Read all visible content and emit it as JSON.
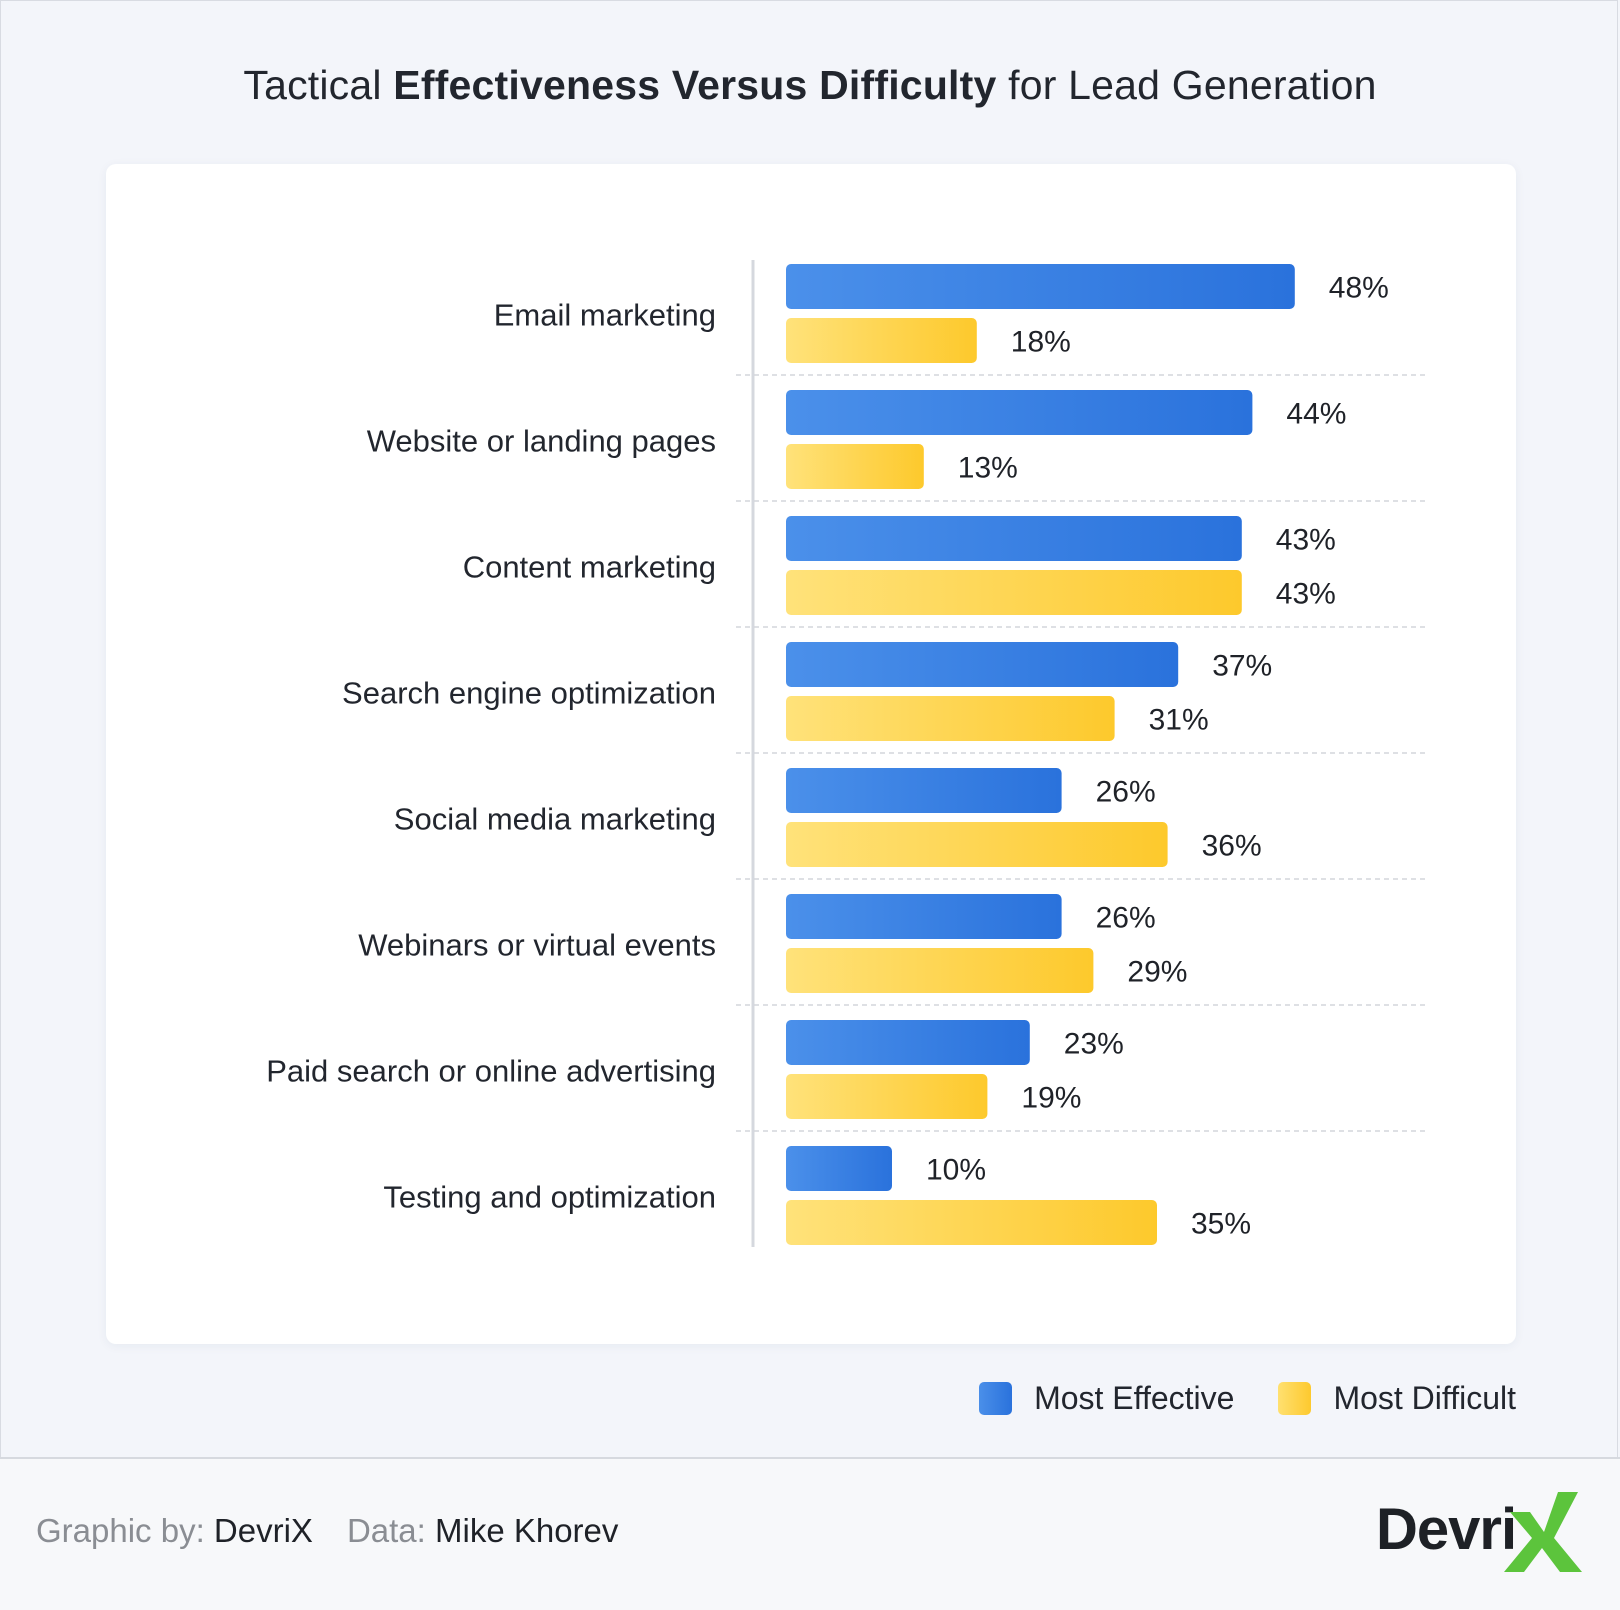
{
  "title": {
    "part1": "Tactical ",
    "bold": "Effectiveness Versus Difficulty",
    "part2": " for Lead Generation"
  },
  "chart_data": {
    "type": "bar",
    "orientation": "horizontal",
    "categories": [
      "Email marketing",
      "Website or landing pages",
      "Content marketing",
      "Search engine optimization",
      "Social media marketing",
      "Webinars or virtual events",
      "Paid search or online advertising",
      "Testing and optimization"
    ],
    "series": [
      {
        "name": "Most Effective",
        "color": "#2f77de",
        "values": [
          48,
          44,
          43,
          37,
          26,
          26,
          23,
          10
        ]
      },
      {
        "name": "Most Difficult",
        "color": "#fdce3c",
        "values": [
          18,
          13,
          43,
          31,
          36,
          29,
          19,
          35
        ]
      }
    ],
    "value_suffix": "%",
    "grid": "dashed row separators",
    "legend_position": "bottom-right"
  },
  "legend": [
    {
      "label": "Most Effective",
      "color": "blue"
    },
    {
      "label": "Most Difficult",
      "color": "yellow"
    }
  ],
  "footer": {
    "graphic_key": "Graphic by:",
    "graphic_value": "DevriX",
    "data_key": "Data:",
    "data_value": "Mike Khorev"
  },
  "logo": {
    "text": "Devri",
    "mark": "X",
    "mark_color": "#5cc43c"
  }
}
